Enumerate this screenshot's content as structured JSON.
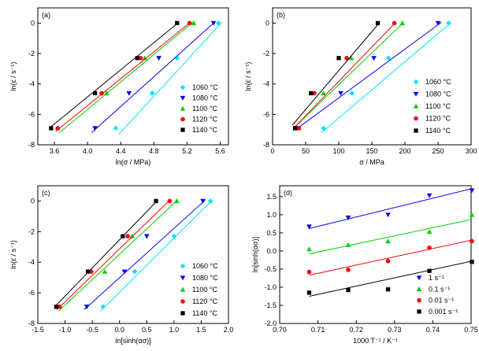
{
  "chart_data": [
    {
      "type": "scatter",
      "panel_label": "(a)",
      "xlabel": "ln(σ / MPa)",
      "ylabel": "ln(ε̇ / s⁻¹)",
      "xlim": [
        3.4,
        5.7
      ],
      "ylim": [
        -8,
        1
      ],
      "xticks": [
        "3.6",
        "4.0",
        "4.4",
        "4.8",
        "5.2",
        "5.6"
      ],
      "xtick_values": [
        3.6,
        4.0,
        4.4,
        4.8,
        5.2,
        5.6
      ],
      "yticks": [
        "0",
        "-2",
        "-4",
        "-6",
        "-8"
      ],
      "ytick_values": [
        0,
        -2,
        -4,
        -6,
        -8
      ],
      "legend_position": "right",
      "series": [
        {
          "name": "1060 °C",
          "color": "#00e5ff",
          "marker": "diamond",
          "points": [
            [
              4.34,
              -6.91
            ],
            [
              4.78,
              -4.61
            ],
            [
              5.08,
              -2.3
            ],
            [
              5.58,
              0.0
            ]
          ],
          "fit": [
            [
              4.38,
              -7.3
            ],
            [
              5.62,
              0.05
            ]
          ]
        },
        {
          "name": "1080 °C",
          "color": "#0000ff",
          "marker": "triangle-down",
          "points": [
            [
              4.09,
              -6.91
            ],
            [
              4.5,
              -4.61
            ],
            [
              4.86,
              -2.3
            ],
            [
              5.52,
              0.0
            ]
          ],
          "fit": [
            [
              4.05,
              -7.2
            ],
            [
              5.53,
              0.05
            ]
          ]
        },
        {
          "name": "1100 °C",
          "color": "#00d000",
          "marker": "triangle-up",
          "points": [
            [
              3.64,
              -6.91
            ],
            [
              4.23,
              -4.61
            ],
            [
              4.69,
              -2.3
            ],
            [
              5.28,
              0.0
            ]
          ],
          "fit": [
            [
              3.66,
              -7.2
            ],
            [
              5.27,
              0.05
            ]
          ]
        },
        {
          "name": "1120 °C",
          "color": "#ff0000",
          "marker": "circle",
          "points": [
            [
              3.64,
              -6.91
            ],
            [
              4.17,
              -4.61
            ],
            [
              4.64,
              -2.3
            ],
            [
              5.23,
              0.0
            ]
          ],
          "fit": [
            [
              3.62,
              -7.1
            ],
            [
              5.24,
              0.05
            ]
          ]
        },
        {
          "name": "1140 °C",
          "color": "#000000",
          "marker": "square",
          "points": [
            [
              3.56,
              -6.91
            ],
            [
              4.09,
              -4.61
            ],
            [
              4.6,
              -2.3
            ],
            [
              5.08,
              0.0
            ]
          ],
          "fit": [
            [
              3.54,
              -6.9
            ],
            [
              5.1,
              0.05
            ]
          ]
        }
      ]
    },
    {
      "type": "scatter",
      "panel_label": "(b)",
      "xlabel": "σ / MPa",
      "ylabel": "ln(ε̇ / s⁻¹)",
      "xlim": [
        0,
        300
      ],
      "ylim": [
        -8,
        1
      ],
      "xticks": [
        "0",
        "50",
        "100",
        "150",
        "200",
        "250",
        "300"
      ],
      "xtick_values": [
        0,
        50,
        100,
        150,
        200,
        250,
        300
      ],
      "yticks": [
        "0",
        "-2",
        "-4",
        "-6",
        "-8"
      ],
      "ytick_values": [
        0,
        -2,
        -4,
        -6,
        -8
      ],
      "legend_position": "right",
      "series": [
        {
          "name": "1060 °C",
          "color": "#00e5ff",
          "marker": "diamond",
          "points": [
            [
              77,
              -6.91
            ],
            [
              120,
              -4.61
            ],
            [
              175,
              -2.3
            ],
            [
              266,
              0.0
            ]
          ],
          "fit": [
            [
              74,
              -7.2
            ],
            [
              270,
              0.05
            ]
          ]
        },
        {
          "name": "1080 °C",
          "color": "#0000ff",
          "marker": "triangle-down",
          "points": [
            [
              36,
              -6.91
            ],
            [
              103,
              -4.61
            ],
            [
              153,
              -2.3
            ],
            [
              250,
              0.0
            ]
          ],
          "fit": [
            [
              35,
              -7.0
            ],
            [
              255,
              0.05
            ]
          ]
        },
        {
          "name": "1100 °C",
          "color": "#00d000",
          "marker": "triangle-up",
          "points": [
            [
              36,
              -6.91
            ],
            [
              77,
              -4.61
            ],
            [
              119,
              -2.3
            ],
            [
              196,
              0.0
            ]
          ],
          "fit": [
            [
              32,
              -6.9
            ],
            [
              198,
              0.05
            ]
          ]
        },
        {
          "name": "1120 °C",
          "color": "#ff0000",
          "marker": "circle",
          "points": [
            [
              40,
              -6.91
            ],
            [
              63,
              -4.61
            ],
            [
              112,
              -2.3
            ],
            [
              184,
              0.0
            ]
          ],
          "fit": [
            [
              32,
              -6.9
            ],
            [
              186,
              0.05
            ]
          ]
        },
        {
          "name": "1140 °C",
          "color": "#000000",
          "marker": "square",
          "points": [
            [
              34,
              -6.91
            ],
            [
              58,
              -4.61
            ],
            [
              100,
              -2.3
            ],
            [
              159,
              0.0
            ]
          ],
          "fit": [
            [
              30,
              -6.7
            ],
            [
              162,
              0.05
            ]
          ]
        }
      ]
    },
    {
      "type": "scatter",
      "panel_label": "(c)",
      "xlabel": "ln[sinh(ασ)]",
      "ylabel": "ln(ε̇ / s⁻¹)",
      "xlim": [
        -1.5,
        2.0
      ],
      "ylim": [
        -8,
        1
      ],
      "xticks": [
        "-1.5",
        "-1.0",
        "-0.5",
        "0.0",
        "0.5",
        "1.0",
        "1.5",
        "2.0"
      ],
      "xtick_values": [
        -1.5,
        -1.0,
        -0.5,
        0.0,
        0.5,
        1.0,
        1.5,
        2.0
      ],
      "yticks": [
        "0",
        "-2",
        "-4",
        "-6",
        "-8"
      ],
      "ytick_values": [
        0,
        -2,
        -4,
        -6,
        -8
      ],
      "legend_position": "right",
      "series": [
        {
          "name": "1060 °C",
          "color": "#00e5ff",
          "marker": "diamond",
          "points": [
            [
              -0.3,
              -6.91
            ],
            [
              0.28,
              -4.61
            ],
            [
              1.0,
              -2.3
            ],
            [
              1.67,
              0.0
            ]
          ],
          "fit": [
            [
              -0.35,
              -7.2
            ],
            [
              1.7,
              0.05
            ]
          ]
        },
        {
          "name": "1080 °C",
          "color": "#0000ff",
          "marker": "triangle-down",
          "points": [
            [
              -0.6,
              -6.91
            ],
            [
              0.09,
              -4.61
            ],
            [
              0.5,
              -2.3
            ],
            [
              1.53,
              0.0
            ]
          ],
          "fit": [
            [
              -0.65,
              -7.1
            ],
            [
              1.57,
              0.05
            ]
          ]
        },
        {
          "name": "1100 °C",
          "color": "#00d000",
          "marker": "triangle-up",
          "points": [
            [
              -1.1,
              -6.91
            ],
            [
              -0.27,
              -4.61
            ],
            [
              0.23,
              -2.3
            ],
            [
              1.05,
              0.0
            ]
          ],
          "fit": [
            [
              -1.12,
              -7.2
            ],
            [
              1.06,
              0.05
            ]
          ]
        },
        {
          "name": "1120 °C",
          "color": "#ff0000",
          "marker": "circle",
          "points": [
            [
              -1.1,
              -6.91
            ],
            [
              -0.52,
              -4.61
            ],
            [
              0.15,
              -2.3
            ],
            [
              0.92,
              0.0
            ]
          ],
          "fit": [
            [
              -1.15,
              -7.1
            ],
            [
              0.92,
              0.05
            ]
          ]
        },
        {
          "name": "1140 °C",
          "color": "#000000",
          "marker": "square",
          "points": [
            [
              -1.16,
              -6.91
            ],
            [
              -0.58,
              -4.61
            ],
            [
              0.06,
              -2.3
            ],
            [
              0.67,
              0.0
            ]
          ],
          "fit": [
            [
              -1.2,
              -6.95
            ],
            [
              0.7,
              0.05
            ]
          ]
        }
      ]
    },
    {
      "type": "scatter",
      "panel_label": "(d)",
      "xlabel": "1000 T⁻¹ / K⁻¹",
      "ylabel": "ln[sinh(ασ)]",
      "xlim": [
        0.7,
        0.75
      ],
      "ylim": [
        -2.0,
        1.8
      ],
      "xticks": [
        "0.70",
        "0.71",
        "0.72",
        "0.73",
        "0.74",
        "0.75"
      ],
      "xtick_values": [
        0.7,
        0.71,
        0.72,
        0.73,
        0.74,
        0.75
      ],
      "yticks": [
        "1.5",
        "1.0",
        "0.5",
        "0.0",
        "-0.5",
        "-1.0",
        "-1.5",
        "-2.0"
      ],
      "ytick_values": [
        1.5,
        1.0,
        0.5,
        0.0,
        -0.5,
        -1.0,
        -1.5,
        -2.0
      ],
      "legend_position": "bottom-right",
      "series": [
        {
          "name": "1 s⁻¹",
          "color": "#0000ff",
          "marker": "triangle-down",
          "points": [
            [
              0.7077,
              0.67
            ],
            [
              0.7179,
              0.92
            ],
            [
              0.7283,
              1.0
            ],
            [
              0.7391,
              1.53
            ],
            [
              0.7502,
              1.67
            ]
          ],
          "fit": [
            [
              0.7077,
              0.62
            ],
            [
              0.7502,
              1.72
            ]
          ]
        },
        {
          "name": "0.1 s⁻¹",
          "color": "#00d000",
          "marker": "triangle-up",
          "points": [
            [
              0.7077,
              0.05
            ],
            [
              0.7179,
              0.17
            ],
            [
              0.7283,
              0.27
            ],
            [
              0.7391,
              0.53
            ],
            [
              0.7502,
              1.0
            ]
          ],
          "fit": [
            [
              0.7077,
              -0.08
            ],
            [
              0.7502,
              0.87
            ]
          ]
        },
        {
          "name": "0.01 s⁻¹",
          "color": "#ff0000",
          "marker": "circle",
          "points": [
            [
              0.7077,
              -0.58
            ],
            [
              0.7179,
              -0.52
            ],
            [
              0.7283,
              -0.28
            ],
            [
              0.7391,
              0.09
            ],
            [
              0.7502,
              0.27
            ]
          ],
          "fit": [
            [
              0.7077,
              -0.67
            ],
            [
              0.7502,
              0.3
            ]
          ]
        },
        {
          "name": "0.001 s⁻¹",
          "color": "#000000",
          "marker": "square",
          "points": [
            [
              0.7077,
              -1.15
            ],
            [
              0.7179,
              -1.08
            ],
            [
              0.7283,
              -1.06
            ],
            [
              0.7391,
              -0.55
            ],
            [
              0.7502,
              -0.3
            ]
          ],
          "fit": [
            [
              0.7077,
              -1.25
            ],
            [
              0.7502,
              -0.28
            ]
          ]
        }
      ]
    }
  ]
}
